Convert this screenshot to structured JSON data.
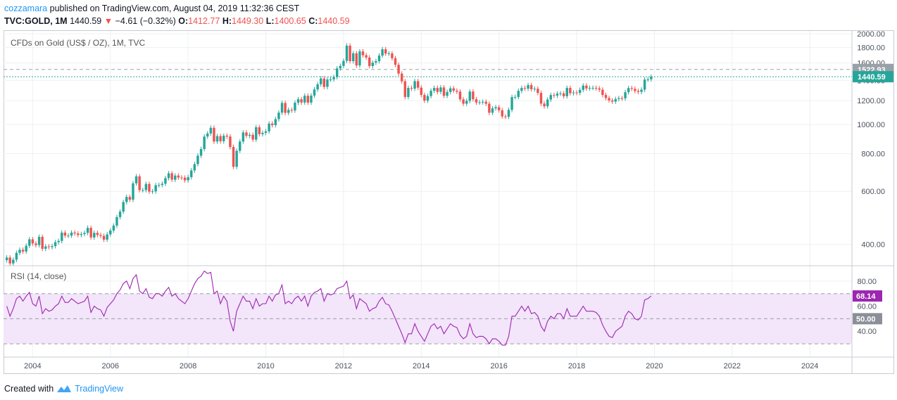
{
  "header": {
    "author": "cozzamara",
    "published": "published on TradingView.com, August 04, 2019 11:32:36 CEST",
    "symbol": "TVC:GOLD, 1M",
    "last": "1440.59",
    "change_arrow": "▼",
    "change": "−4.61 (−0.32%)",
    "o_label": "O:",
    "o_value": "1412.77",
    "h_label": "H:",
    "h_value": "1449.30",
    "l_label": "L:",
    "l_value": "1400.65",
    "c_label": "C:",
    "c_value": "1440.59"
  },
  "footer": {
    "created_with": "Created with",
    "brand": "TradingView",
    "logo_icon": "tradingview-logo-icon"
  },
  "colors": {
    "up": "#26a69a",
    "down": "#ef5350",
    "rsi": "#9c27b0",
    "rsi_band": "#f3e5fa",
    "last_price": "#26a69a",
    "ref_line": "#9aa0a8",
    "grid": "#eef0f3"
  },
  "chart_data": [
    {
      "type": "candlestick",
      "title": "CFDs on Gold (US$ / OZ), 1M, TVC",
      "scale": "log",
      "ylim": [
        340,
        2000
      ],
      "y_ticks": [
        "400.00",
        "600.00",
        "800.00",
        "1000.00",
        "1200.00",
        "1400.00",
        "1600.00",
        "1800.00",
        "2000.00"
      ],
      "x_ticks": [
        "2004",
        "2006",
        "2008",
        "2010",
        "2012",
        "2014",
        "2016",
        "2018",
        "2020",
        "2022",
        "2024"
      ],
      "x_range": [
        "2003-04",
        "2025-02"
      ],
      "grid": true,
      "series": [
        {
          "start": "2003-05",
          "interval": "1M",
          "close": [
            362,
            346,
            356,
            375,
            384,
            379,
            396,
            416,
            403,
            398,
            424,
            387,
            394,
            392,
            395,
            407,
            411,
            438,
            428,
            428,
            438,
            435,
            430,
            433,
            437,
            454,
            422,
            437,
            430,
            427,
            415,
            432,
            445,
            462,
            493,
            514,
            553,
            575,
            563,
            638,
            673,
            606,
            606,
            635,
            599,
            600,
            629,
            630,
            636,
            664,
            689,
            656,
            677,
            667,
            666,
            653,
            669,
            704,
            739,
            788,
            829,
            912,
            934,
            975,
            878,
            915,
            880,
            918,
            912,
            842,
            724,
            818,
            878,
            941,
            917,
            924,
            891,
            979,
            929,
            938,
            949,
            1007,
            995,
            1042,
            1095,
            1179,
            1093,
            1118,
            1113,
            1181,
            1213,
            1183,
            1245,
            1182,
            1247,
            1307,
            1360,
            1421,
            1333,
            1410,
            1412,
            1436,
            1535,
            1564,
            1626,
            1826,
            1622,
            1723,
            1570,
            1747,
            1697,
            1668,
            1563,
            1604,
            1622,
            1693,
            1776,
            1719,
            1721,
            1659,
            1578,
            1475,
            1391,
            1234,
            1322,
            1315,
            1392,
            1325,
            1253,
            1200,
            1243,
            1294,
            1322,
            1283,
            1327,
            1245,
            1282,
            1318,
            1295,
            1285,
            1212,
            1172,
            1198,
            1286,
            1213,
            1183,
            1185,
            1190,
            1172,
            1094,
            1131,
            1141,
            1115,
            1064,
            1061,
            1118,
            1233,
            1234,
            1293,
            1322,
            1315,
            1351,
            1309,
            1314,
            1273,
            1173,
            1149,
            1210,
            1252,
            1247,
            1266,
            1268,
            1241,
            1322,
            1270,
            1277,
            1273,
            1303,
            1346,
            1317,
            1323,
            1323,
            1318,
            1305,
            1253,
            1224,
            1202,
            1191,
            1215,
            1223,
            1221,
            1280,
            1321,
            1313,
            1292,
            1283,
            1305,
            1409,
            1412,
            1441
          ]
        }
      ],
      "annotations": [
        {
          "label": "1522.93",
          "value": 1522.93,
          "style": "dashed"
        },
        {
          "label": "1440.59",
          "value": 1440.59,
          "style": "dotted"
        }
      ]
    },
    {
      "type": "line",
      "title": "RSI (14, close)",
      "ylim": [
        25,
        90
      ],
      "y_ticks": [
        "40.00",
        "60.00",
        "80.00"
      ],
      "band": [
        30,
        70
      ],
      "grid": true,
      "series": [
        {
          "start": "2003-05",
          "interval": "1M",
          "values": [
            60,
            52,
            58,
            66,
            68,
            64,
            68,
            71,
            62,
            60,
            68,
            54,
            58,
            56,
            57,
            60,
            62,
            68,
            63,
            63,
            66,
            64,
            62,
            63,
            64,
            68,
            55,
            60,
            58,
            57,
            52,
            59,
            62,
            65,
            70,
            73,
            78,
            80,
            74,
            82,
            85,
            72,
            70,
            74,
            67,
            66,
            70,
            70,
            68,
            72,
            75,
            68,
            70,
            66,
            64,
            62,
            66,
            72,
            78,
            82,
            84,
            88,
            86,
            87,
            70,
            72,
            62,
            68,
            64,
            48,
            40,
            56,
            62,
            68,
            64,
            64,
            58,
            66,
            60,
            62,
            62,
            68,
            64,
            69,
            70,
            77,
            62,
            64,
            62,
            66,
            68,
            64,
            68,
            60,
            68,
            71,
            72,
            74,
            64,
            70,
            69,
            70,
            74,
            75,
            76,
            80,
            66,
            69,
            58,
            66,
            64,
            62,
            56,
            58,
            59,
            64,
            67,
            62,
            61,
            56,
            50,
            44,
            38,
            31,
            38,
            38,
            46,
            40,
            36,
            32,
            38,
            44,
            46,
            42,
            44,
            38,
            42,
            46,
            44,
            43,
            37,
            34,
            36,
            46,
            38,
            35,
            36,
            36,
            34,
            30,
            34,
            34,
            32,
            29,
            29,
            36,
            52,
            52,
            56,
            60,
            56,
            60,
            54,
            55,
            52,
            44,
            40,
            48,
            52,
            50,
            54,
            54,
            50,
            58,
            52,
            52,
            52,
            56,
            60,
            56,
            56,
            56,
            55,
            52,
            45,
            40,
            36,
            35,
            40,
            42,
            44,
            52,
            56,
            54,
            50,
            49,
            52,
            65,
            66,
            68.14
          ]
        }
      ],
      "annotations": [
        {
          "label": "68.14",
          "value": 68.14
        },
        {
          "label": "50.00",
          "value": 50
        }
      ]
    }
  ]
}
